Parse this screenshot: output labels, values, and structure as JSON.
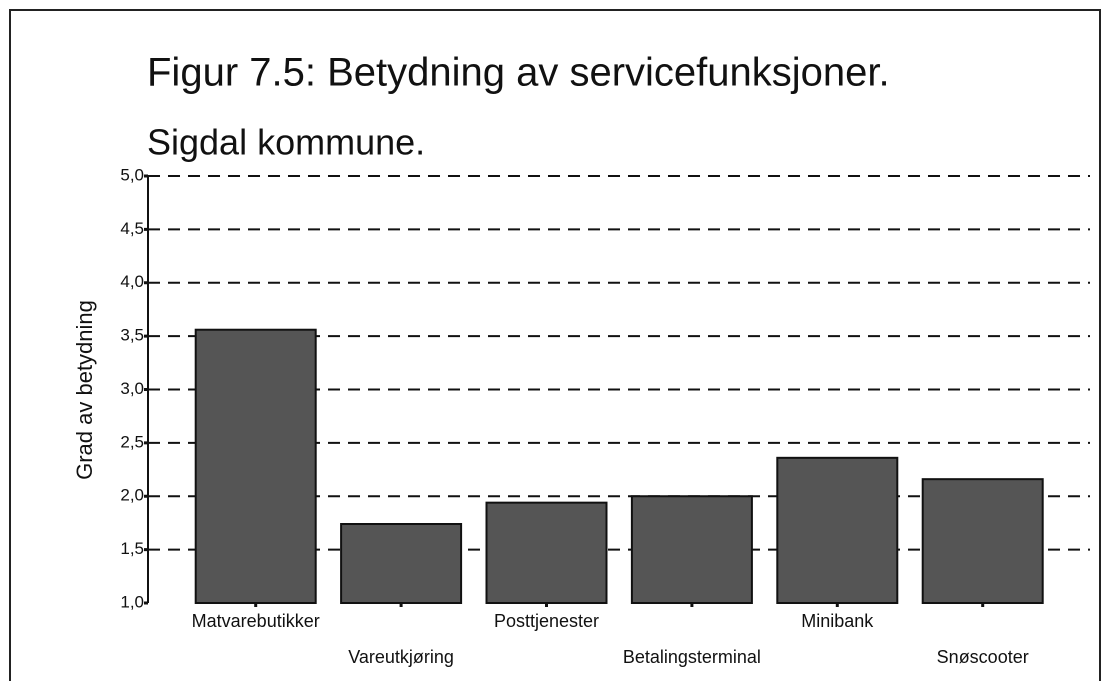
{
  "chart_data": {
    "type": "bar",
    "title": "Figur 7.5: Betydning av servicefunksjoner.",
    "subtitle": "Sigdal kommune.",
    "y_label": "Grad av betydning",
    "categories": [
      "Matvarebutikker",
      "Vareutkjøring",
      "Posttjenester",
      "Betalingsterminal",
      "Minibank",
      "Snøscooter"
    ],
    "values": [
      3.56,
      1.74,
      1.94,
      2.0,
      2.36,
      2.16
    ],
    "color": "#555555",
    "ylim": [
      1,
      5
    ],
    "yticks": [
      {
        "value": 1,
        "label": "1,0"
      },
      {
        "value": 1.5,
        "label": "1,5"
      },
      {
        "value": 2,
        "label": "2,0"
      },
      {
        "value": 2.5,
        "label": "2,5"
      },
      {
        "value": 3,
        "label": "3,0"
      },
      {
        "value": 3.5,
        "label": "3,5"
      },
      {
        "value": 4,
        "label": "4,0"
      },
      {
        "value": 4.5,
        "label": "4,5"
      },
      {
        "value": 5,
        "label": "5,0"
      }
    ],
    "grid": true
  }
}
